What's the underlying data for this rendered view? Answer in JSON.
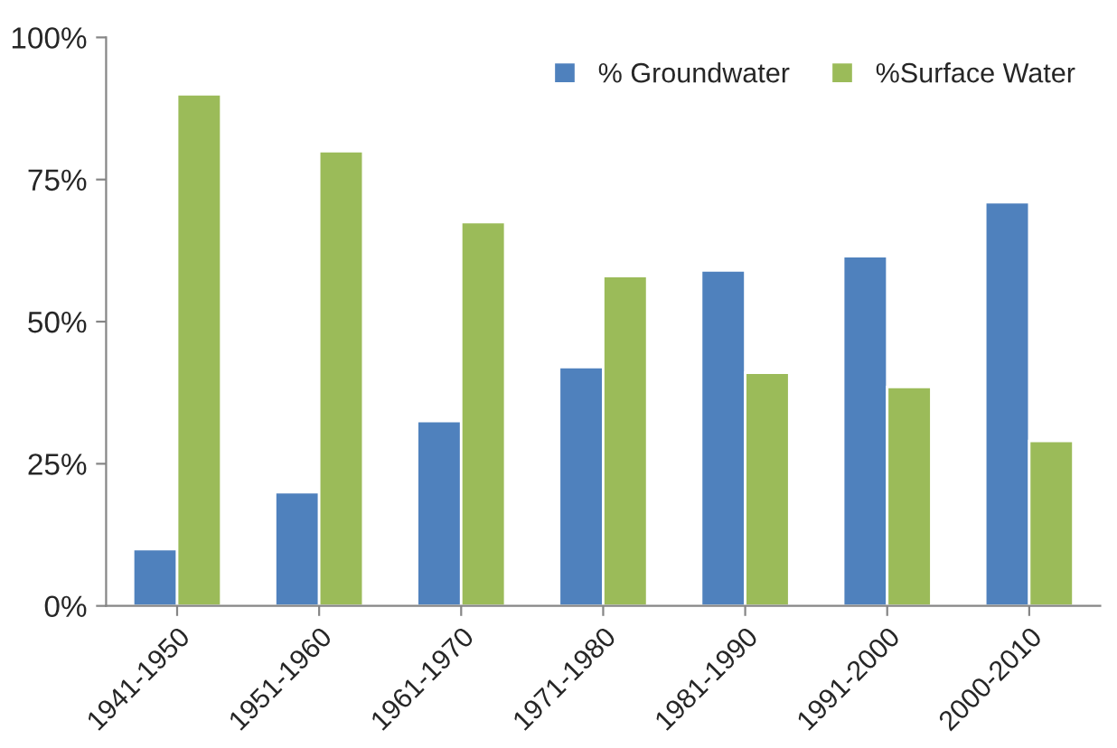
{
  "chart_data": {
    "type": "bar",
    "categories": [
      "1941-1950",
      "1951-1960",
      "1961-1970",
      "1971-1980",
      "1981-1990",
      "1991-2000",
      "2000-2010"
    ],
    "series": [
      {
        "name": "% Groundwater",
        "color": "#4f81bd",
        "values": [
          10,
          20,
          32.5,
          42,
          59,
          61.5,
          71
        ]
      },
      {
        "name": "%Surface Water",
        "color": "#9bbb59",
        "values": [
          90,
          80,
          67.5,
          58,
          41,
          38.5,
          29
        ]
      }
    ],
    "ylim": [
      0,
      100
    ],
    "yticks": [
      {
        "value": 0,
        "label": "0%"
      },
      {
        "value": 25,
        "label": "25%"
      },
      {
        "value": 50,
        "label": "50%"
      },
      {
        "value": 75,
        "label": "75%"
      },
      {
        "value": 100,
        "label": "100%"
      }
    ],
    "grid": false,
    "legend": "top right"
  }
}
